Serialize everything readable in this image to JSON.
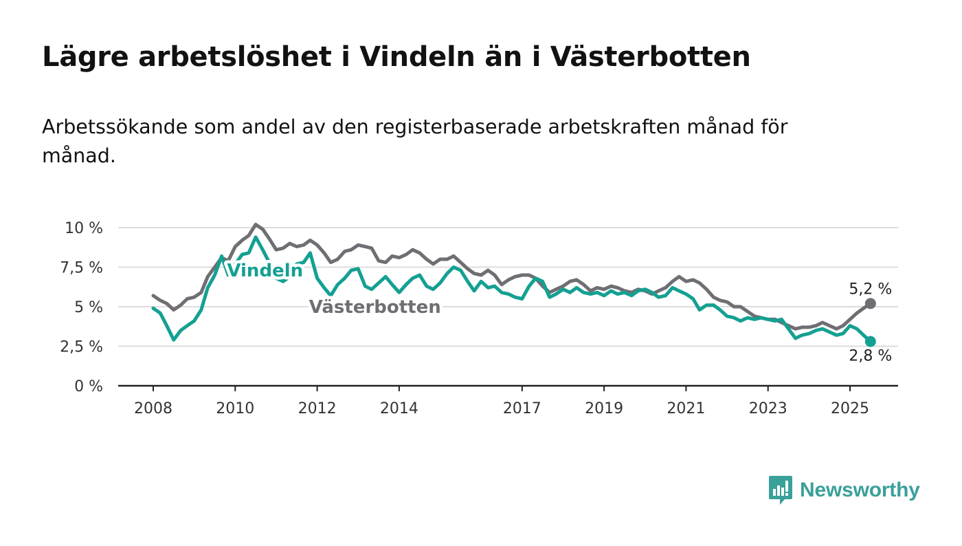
{
  "title": "Lägre arbetslöshet i Vindeln än i Västerbotten",
  "subtitle": "Arbetssökande som andel av den registerbaserade arbetskraften månad för månad.",
  "brand": {
    "name": "Newsworthy",
    "icon": "newsworthy-logo-icon",
    "color": "#3aa09a"
  },
  "chart_data": {
    "type": "line",
    "title": "Lägre arbetslöshet i Vindeln än i Västerbotten",
    "xlabel": "",
    "ylabel": "",
    "ylim": [
      0,
      10
    ],
    "xlim": [
      2008,
      2025.5
    ],
    "grid": true,
    "legend": "inline labels",
    "x_ticks": [
      {
        "value": 2008,
        "label": "2008"
      },
      {
        "value": 2010,
        "label": "2010"
      },
      {
        "value": 2012,
        "label": "2012"
      },
      {
        "value": 2014,
        "label": "2014"
      },
      {
        "value": 2017,
        "label": "2017"
      },
      {
        "value": 2019,
        "label": "2019"
      },
      {
        "value": 2021,
        "label": "2021"
      },
      {
        "value": 2023,
        "label": "2023"
      },
      {
        "value": 2025,
        "label": "2025"
      }
    ],
    "y_ticks": [
      {
        "value": 0,
        "label": "0 %"
      },
      {
        "value": 2.5,
        "label": "2,5 %"
      },
      {
        "value": 5,
        "label": "5 %"
      },
      {
        "value": 7.5,
        "label": "7,5 %"
      },
      {
        "value": 10,
        "label": "10 %"
      }
    ],
    "series": [
      {
        "name": "Västerbotten",
        "color": "#6e6e73",
        "label_at": [
          2011.8,
          5.0
        ],
        "end_label": "5,2 %",
        "end_label_position": "above",
        "points": [
          [
            2008,
            5.7
          ],
          [
            2008.17,
            5.4
          ],
          [
            2008.33,
            5.2
          ],
          [
            2008.5,
            4.8
          ],
          [
            2008.67,
            5.1
          ],
          [
            2008.83,
            5.5
          ],
          [
            2009,
            5.6
          ],
          [
            2009.17,
            5.9
          ],
          [
            2009.33,
            6.9
          ],
          [
            2009.5,
            7.5
          ],
          [
            2009.67,
            8.1
          ],
          [
            2009.83,
            7.9
          ],
          [
            2010,
            8.8
          ],
          [
            2010.17,
            9.2
          ],
          [
            2010.33,
            9.5
          ],
          [
            2010.5,
            10.2
          ],
          [
            2010.67,
            9.9
          ],
          [
            2010.83,
            9.3
          ],
          [
            2011,
            8.6
          ],
          [
            2011.17,
            8.7
          ],
          [
            2011.33,
            9.0
          ],
          [
            2011.5,
            8.8
          ],
          [
            2011.67,
            8.9
          ],
          [
            2011.83,
            9.2
          ],
          [
            2012,
            8.9
          ],
          [
            2012.17,
            8.4
          ],
          [
            2012.33,
            7.8
          ],
          [
            2012.5,
            8.0
          ],
          [
            2012.67,
            8.5
          ],
          [
            2012.83,
            8.6
          ],
          [
            2013,
            8.9
          ],
          [
            2013.17,
            8.8
          ],
          [
            2013.33,
            8.7
          ],
          [
            2013.5,
            7.9
          ],
          [
            2013.67,
            7.8
          ],
          [
            2013.83,
            8.2
          ],
          [
            2014,
            8.1
          ],
          [
            2014.17,
            8.3
          ],
          [
            2014.33,
            8.6
          ],
          [
            2014.5,
            8.4
          ],
          [
            2014.67,
            8.0
          ],
          [
            2014.83,
            7.7
          ],
          [
            2015,
            8.0
          ],
          [
            2015.17,
            8.0
          ],
          [
            2015.33,
            8.2
          ],
          [
            2015.5,
            7.8
          ],
          [
            2015.67,
            7.4
          ],
          [
            2015.83,
            7.1
          ],
          [
            2016,
            7.0
          ],
          [
            2016.17,
            7.3
          ],
          [
            2016.33,
            7.0
          ],
          [
            2016.5,
            6.4
          ],
          [
            2016.67,
            6.7
          ],
          [
            2016.83,
            6.9
          ],
          [
            2017,
            7.0
          ],
          [
            2017.17,
            7.0
          ],
          [
            2017.33,
            6.8
          ],
          [
            2017.5,
            6.3
          ],
          [
            2017.67,
            5.9
          ],
          [
            2017.83,
            6.1
          ],
          [
            2018,
            6.3
          ],
          [
            2018.17,
            6.6
          ],
          [
            2018.33,
            6.7
          ],
          [
            2018.5,
            6.4
          ],
          [
            2018.67,
            6.0
          ],
          [
            2018.83,
            6.2
          ],
          [
            2019,
            6.1
          ],
          [
            2019.17,
            6.3
          ],
          [
            2019.33,
            6.2
          ],
          [
            2019.5,
            6.0
          ],
          [
            2019.67,
            5.9
          ],
          [
            2019.83,
            6.1
          ],
          [
            2020,
            6.0
          ],
          [
            2020.17,
            5.8
          ],
          [
            2020.33,
            6.0
          ],
          [
            2020.5,
            6.2
          ],
          [
            2020.67,
            6.6
          ],
          [
            2020.83,
            6.9
          ],
          [
            2021,
            6.6
          ],
          [
            2021.17,
            6.7
          ],
          [
            2021.33,
            6.5
          ],
          [
            2021.5,
            6.1
          ],
          [
            2021.67,
            5.6
          ],
          [
            2021.83,
            5.4
          ],
          [
            2022,
            5.3
          ],
          [
            2022.17,
            5.0
          ],
          [
            2022.33,
            5.0
          ],
          [
            2022.5,
            4.7
          ],
          [
            2022.67,
            4.4
          ],
          [
            2022.83,
            4.3
          ],
          [
            2023,
            4.2
          ],
          [
            2023.17,
            4.2
          ],
          [
            2023.33,
            4.0
          ],
          [
            2023.5,
            3.8
          ],
          [
            2023.67,
            3.6
          ],
          [
            2023.83,
            3.7
          ],
          [
            2024,
            3.7
          ],
          [
            2024.17,
            3.8
          ],
          [
            2024.33,
            4.0
          ],
          [
            2024.5,
            3.8
          ],
          [
            2024.67,
            3.6
          ],
          [
            2024.83,
            3.8
          ],
          [
            2025,
            4.2
          ],
          [
            2025.17,
            4.6
          ],
          [
            2025.33,
            4.9
          ],
          [
            2025.5,
            5.2
          ]
        ]
      },
      {
        "name": "Vindeln",
        "color": "#14a092",
        "label_at": [
          2009.8,
          7.3
        ],
        "end_label": "2,8 %",
        "end_label_position": "below",
        "points": [
          [
            2008,
            4.9
          ],
          [
            2008.17,
            4.6
          ],
          [
            2008.33,
            3.8
          ],
          [
            2008.5,
            2.9
          ],
          [
            2008.67,
            3.5
          ],
          [
            2008.83,
            3.8
          ],
          [
            2009,
            4.1
          ],
          [
            2009.17,
            4.8
          ],
          [
            2009.33,
            6.2
          ],
          [
            2009.5,
            7.0
          ],
          [
            2009.67,
            8.2
          ],
          [
            2009.83,
            7.0
          ],
          [
            2010,
            7.7
          ],
          [
            2010.17,
            8.3
          ],
          [
            2010.33,
            8.4
          ],
          [
            2010.5,
            9.4
          ],
          [
            2010.67,
            8.6
          ],
          [
            2010.83,
            7.8
          ],
          [
            2011,
            6.8
          ],
          [
            2011.17,
            6.6
          ],
          [
            2011.33,
            6.9
          ],
          [
            2011.5,
            7.7
          ],
          [
            2011.67,
            7.8
          ],
          [
            2011.83,
            8.4
          ],
          [
            2012,
            6.8
          ],
          [
            2012.17,
            6.2
          ],
          [
            2012.33,
            5.7
          ],
          [
            2012.5,
            6.4
          ],
          [
            2012.67,
            6.8
          ],
          [
            2012.83,
            7.3
          ],
          [
            2013,
            7.4
          ],
          [
            2013.17,
            6.3
          ],
          [
            2013.33,
            6.1
          ],
          [
            2013.5,
            6.5
          ],
          [
            2013.67,
            6.9
          ],
          [
            2013.83,
            6.4
          ],
          [
            2014,
            5.9
          ],
          [
            2014.17,
            6.4
          ],
          [
            2014.33,
            6.8
          ],
          [
            2014.5,
            7.0
          ],
          [
            2014.67,
            6.3
          ],
          [
            2014.83,
            6.1
          ],
          [
            2015,
            6.5
          ],
          [
            2015.17,
            7.1
          ],
          [
            2015.33,
            7.5
          ],
          [
            2015.5,
            7.3
          ],
          [
            2015.67,
            6.6
          ],
          [
            2015.83,
            6.0
          ],
          [
            2016,
            6.6
          ],
          [
            2016.17,
            6.2
          ],
          [
            2016.33,
            6.3
          ],
          [
            2016.5,
            5.9
          ],
          [
            2016.67,
            5.8
          ],
          [
            2016.83,
            5.6
          ],
          [
            2017,
            5.5
          ],
          [
            2017.17,
            6.3
          ],
          [
            2017.33,
            6.8
          ],
          [
            2017.5,
            6.6
          ],
          [
            2017.67,
            5.6
          ],
          [
            2017.83,
            5.8
          ],
          [
            2018,
            6.1
          ],
          [
            2018.17,
            5.9
          ],
          [
            2018.33,
            6.2
          ],
          [
            2018.5,
            5.9
          ],
          [
            2018.67,
            5.8
          ],
          [
            2018.83,
            5.9
          ],
          [
            2019,
            5.7
          ],
          [
            2019.17,
            6.0
          ],
          [
            2019.33,
            5.8
          ],
          [
            2019.5,
            5.9
          ],
          [
            2019.67,
            5.7
          ],
          [
            2019.83,
            6.0
          ],
          [
            2020,
            6.1
          ],
          [
            2020.17,
            5.9
          ],
          [
            2020.33,
            5.6
          ],
          [
            2020.5,
            5.7
          ],
          [
            2020.67,
            6.2
          ],
          [
            2020.83,
            6.0
          ],
          [
            2021,
            5.8
          ],
          [
            2021.17,
            5.5
          ],
          [
            2021.33,
            4.8
          ],
          [
            2021.5,
            5.1
          ],
          [
            2021.67,
            5.1
          ],
          [
            2021.83,
            4.8
          ],
          [
            2022,
            4.4
          ],
          [
            2022.17,
            4.3
          ],
          [
            2022.33,
            4.1
          ],
          [
            2022.5,
            4.3
          ],
          [
            2022.67,
            4.2
          ],
          [
            2022.83,
            4.3
          ],
          [
            2023,
            4.2
          ],
          [
            2023.17,
            4.1
          ],
          [
            2023.33,
            4.2
          ],
          [
            2023.5,
            3.6
          ],
          [
            2023.67,
            3.0
          ],
          [
            2023.83,
            3.2
          ],
          [
            2024,
            3.3
          ],
          [
            2024.17,
            3.5
          ],
          [
            2024.33,
            3.6
          ],
          [
            2024.5,
            3.4
          ],
          [
            2024.67,
            3.2
          ],
          [
            2024.83,
            3.3
          ],
          [
            2025,
            3.8
          ],
          [
            2025.17,
            3.6
          ],
          [
            2025.33,
            3.2
          ],
          [
            2025.5,
            2.8
          ]
        ]
      }
    ]
  }
}
